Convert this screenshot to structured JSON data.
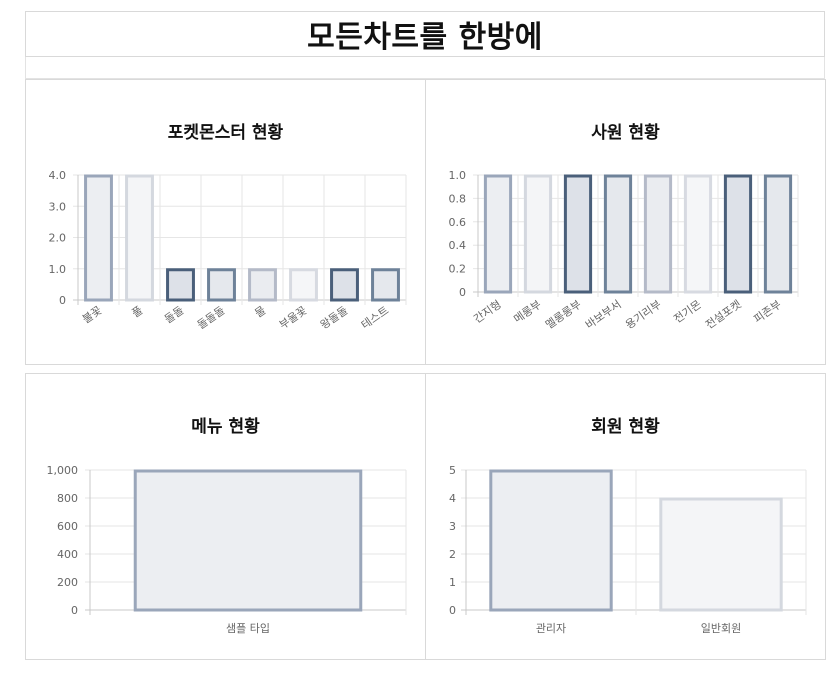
{
  "page": {
    "title": "모든차트를 한방에"
  },
  "chart_data": [
    {
      "type": "bar",
      "title": "포켓몬스터 현황",
      "categories": [
        "불꽃",
        "풀",
        "돌돌",
        "돌돌돌",
        "물",
        "부울꽃",
        "왕돌돌",
        "테스트"
      ],
      "values": [
        4,
        4,
        1,
        1,
        1,
        1,
        1,
        1
      ],
      "ylim": [
        0,
        4
      ],
      "yticks": [
        "0",
        "1.0",
        "2.0",
        "3.0",
        "4.0"
      ],
      "tick_values": [
        0,
        1,
        2,
        3,
        4
      ],
      "grid": true,
      "colors": [
        "#9aa6ba",
        "#d4d8df",
        "#4a5f7a",
        "#6e8299",
        "#b4bac8",
        "#d7dae1",
        "#4a5f7a",
        "#6e8299"
      ],
      "fills": [
        "#eceef2",
        "#f4f5f7",
        "#dde1e8",
        "#e5e8ed",
        "#eaecf0",
        "#f5f6f8",
        "#dde1e8",
        "#e5e8ed"
      ]
    },
    {
      "type": "bar",
      "title": "사원 현황",
      "categories": [
        "간지형",
        "메롱부",
        "멜롱롱부",
        "바보부서",
        "용기리부",
        "전기몬",
        "전설포켓",
        "피존부"
      ],
      "values": [
        1,
        1,
        1,
        1,
        1,
        1,
        1,
        1
      ],
      "ylim": [
        0,
        1
      ],
      "yticks": [
        "0",
        "0.2",
        "0.4",
        "0.6",
        "0.8",
        "1.0"
      ],
      "tick_values": [
        0,
        0.2,
        0.4,
        0.6,
        0.8,
        1.0
      ],
      "grid": true,
      "colors": [
        "#9aa6ba",
        "#d4d8df",
        "#4a5f7a",
        "#6e8299",
        "#b4bac8",
        "#d7dae1",
        "#4a5f7a",
        "#6e8299"
      ],
      "fills": [
        "#eceef2",
        "#f4f5f7",
        "#dde1e8",
        "#e5e8ed",
        "#eaecf0",
        "#f5f6f8",
        "#dde1e8",
        "#e5e8ed"
      ]
    },
    {
      "type": "bar",
      "title": "메뉴 현황",
      "categories": [
        "샘플 타입"
      ],
      "values": [
        1000
      ],
      "ylim": [
        0,
        1000
      ],
      "yticks": [
        "0",
        "200",
        "400",
        "600",
        "800",
        "1,000"
      ],
      "tick_values": [
        0,
        200,
        400,
        600,
        800,
        1000
      ],
      "grid": true,
      "colors": [
        "#9aa6ba"
      ],
      "fills": [
        "#eceef2"
      ]
    },
    {
      "type": "bar",
      "title": "회원 현황",
      "categories": [
        "관리자",
        "일반회원"
      ],
      "values": [
        5,
        4
      ],
      "ylim": [
        0,
        5
      ],
      "yticks": [
        "0",
        "1",
        "2",
        "3",
        "4",
        "5"
      ],
      "tick_values": [
        0,
        1,
        2,
        3,
        4,
        5
      ],
      "grid": true,
      "colors": [
        "#9aa6ba",
        "#d4d8df"
      ],
      "fills": [
        "#eceef2",
        "#f4f5f7"
      ]
    }
  ]
}
